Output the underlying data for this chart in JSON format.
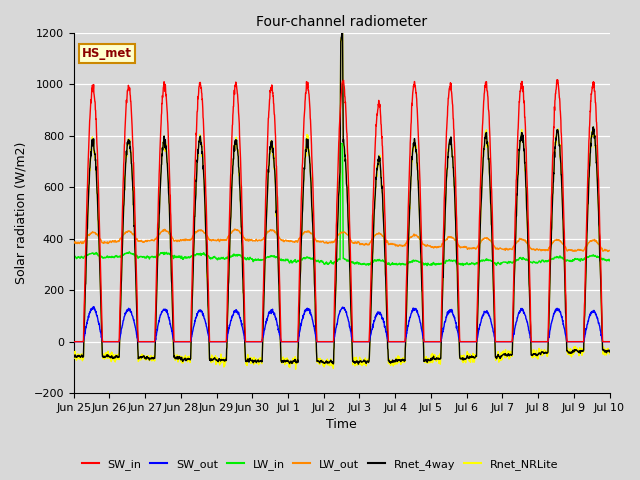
{
  "title": "Four-channel radiometer",
  "xlabel": "Time",
  "ylabel": "Solar radiation (W/m2)",
  "ylim": [
    -200,
    1200
  ],
  "background_color": "#d8d8d8",
  "plot_bg_color": "#d8d8d8",
  "grid_color": "#ffffff",
  "station_label": "HS_met",
  "x_tick_labels": [
    "Jun 25",
    "Jun 26",
    "Jun 27",
    "Jun 28",
    "Jun 29",
    "Jun 30",
    "Jul 1",
    "Jul 2",
    "Jul 3",
    "Jul 4",
    "Jul 5",
    "Jul 6",
    "Jul 7",
    "Jul 8",
    "Jul 9",
    "Jul 10"
  ],
  "series": {
    "SW_in": {
      "color": "#ff0000",
      "lw": 1.0
    },
    "SW_out": {
      "color": "#0000ff",
      "lw": 1.0
    },
    "LW_in": {
      "color": "#00ee00",
      "lw": 1.0
    },
    "LW_out": {
      "color": "#ff8800",
      "lw": 1.0
    },
    "Rnet_4way": {
      "color": "#000000",
      "lw": 1.0
    },
    "Rnet_NRLite": {
      "color": "#ffff00",
      "lw": 1.0
    }
  },
  "figsize": [
    6.4,
    4.8
  ],
  "dpi": 100
}
